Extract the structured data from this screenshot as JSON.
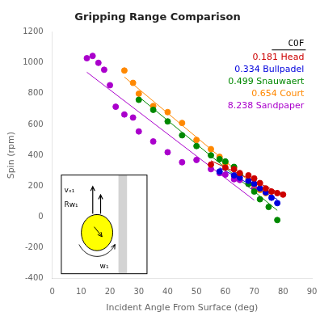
{
  "chart_data": {
    "type": "scatter",
    "title": "Gripping Range Comparison",
    "xlabel": "Incident Angle From Surface (deg)",
    "ylabel": "Spin (rpm)",
    "xlim": [
      0,
      90
    ],
    "ylim": [
      -400,
      1200
    ],
    "xticks": [
      0,
      10,
      20,
      30,
      40,
      50,
      60,
      70,
      80,
      90
    ],
    "yticks": [
      -400,
      -200,
      0,
      200,
      400,
      600,
      800,
      1000,
      1200
    ],
    "grid": false,
    "legend": "upper right",
    "legend_title": "COF",
    "series": [
      {
        "name": "0.181 Head",
        "color": "#cc0000",
        "x": [
          55,
          60,
          63,
          65,
          68,
          70,
          72,
          74,
          76,
          78,
          80
        ],
        "values": [
          340,
          320,
          310,
          285,
          270,
          250,
          220,
          185,
          165,
          155,
          145
        ],
        "fit_x": [
          55,
          80
        ],
        "fit_values": [
          365.1,
          145.4
        ]
      },
      {
        "name": "0.334 Bullpadel",
        "color": "#0000dd",
        "x": [
          58,
          63,
          65,
          68,
          70,
          72,
          74,
          76,
          78
        ],
        "values": [
          295,
          270,
          255,
          235,
          215,
          185,
          160,
          125,
          90
        ],
        "fit_x": [
          58,
          78
        ],
        "fit_values": [
          319.9,
          114.2
        ]
      },
      {
        "name": "0.499 Snauwaert",
        "color": "#008800",
        "x": [
          30,
          35,
          40,
          45,
          50,
          55,
          58,
          60,
          63,
          65,
          68,
          70,
          72,
          75,
          78
        ],
        "values": [
          760,
          695,
          620,
          530,
          460,
          400,
          375,
          360,
          325,
          275,
          215,
          165,
          115,
          65,
          -20
        ],
        "fit_x": [
          30,
          78
        ],
        "fit_values": [
          779.8,
          42.8
        ]
      },
      {
        "name": "0.654 Court",
        "color": "#ff8800",
        "x": [
          25,
          28,
          30,
          35,
          40,
          45,
          50,
          55,
          58,
          60,
          63,
          65,
          68,
          70,
          72,
          74
        ],
        "values": [
          950,
          870,
          800,
          720,
          680,
          610,
          500,
          440,
          390,
          350,
          320,
          275,
          240,
          210,
          175,
          155
        ],
        "fit_x": [
          25,
          74
        ],
        "fit_values": [
          907.9,
          142.5
        ]
      },
      {
        "name": "8.238 Sandpaper",
        "color": "#aa00cc",
        "x": [
          12,
          14,
          16,
          18,
          20,
          22,
          25,
          28,
          30,
          35,
          40,
          45,
          50,
          55,
          58,
          60,
          63,
          65,
          68,
          70
        ],
        "values": [
          1030,
          1045,
          1000,
          955,
          855,
          715,
          665,
          645,
          555,
          490,
          420,
          355,
          370,
          310,
          285,
          275,
          245,
          240,
          215,
          185
        ],
        "fit_x": [
          12,
          70
        ],
        "fit_values": [
          939.3,
          109.0
        ]
      }
    ],
    "annotations": [
      "vₓ₁",
      "Rw₁",
      "w₁"
    ]
  }
}
